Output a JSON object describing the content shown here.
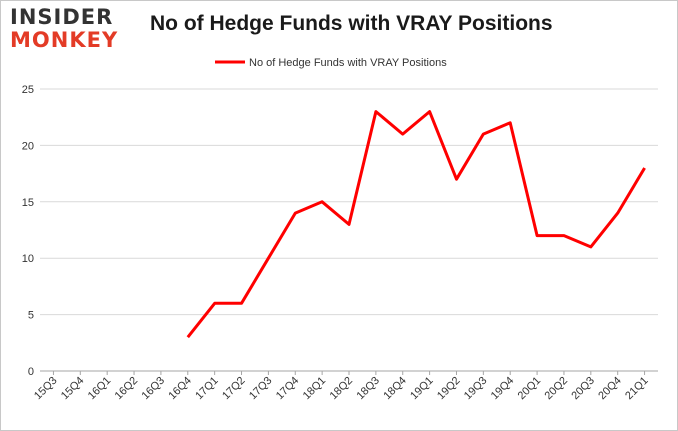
{
  "logo": {
    "line1": "INSIDER",
    "line2": "MONKEY"
  },
  "chart_data": {
    "type": "line",
    "title": "No of Hedge Funds with VRAY Positions",
    "xlabel": "",
    "ylabel": "",
    "categories": [
      "15Q3",
      "15Q4",
      "16Q1",
      "16Q2",
      "16Q3",
      "16Q4",
      "17Q1",
      "17Q2",
      "17Q3",
      "17Q4",
      "18Q1",
      "18Q2",
      "18Q3",
      "18Q4",
      "19Q1",
      "19Q2",
      "19Q3",
      "19Q4",
      "20Q1",
      "20Q2",
      "20Q3",
      "20Q4",
      "21Q1"
    ],
    "series": [
      {
        "name": "No of Hedge Funds with VRAY Positions",
        "color": "#ff0000",
        "values": [
          null,
          null,
          null,
          null,
          null,
          3,
          6,
          6,
          10,
          14,
          15,
          13,
          23,
          21,
          23,
          17,
          21,
          22,
          12,
          12,
          11,
          14,
          18
        ]
      }
    ],
    "ylim": [
      0,
      25
    ],
    "yticks": [
      0,
      5,
      10,
      15,
      20,
      25
    ],
    "grid": true,
    "legend": "top-center"
  }
}
